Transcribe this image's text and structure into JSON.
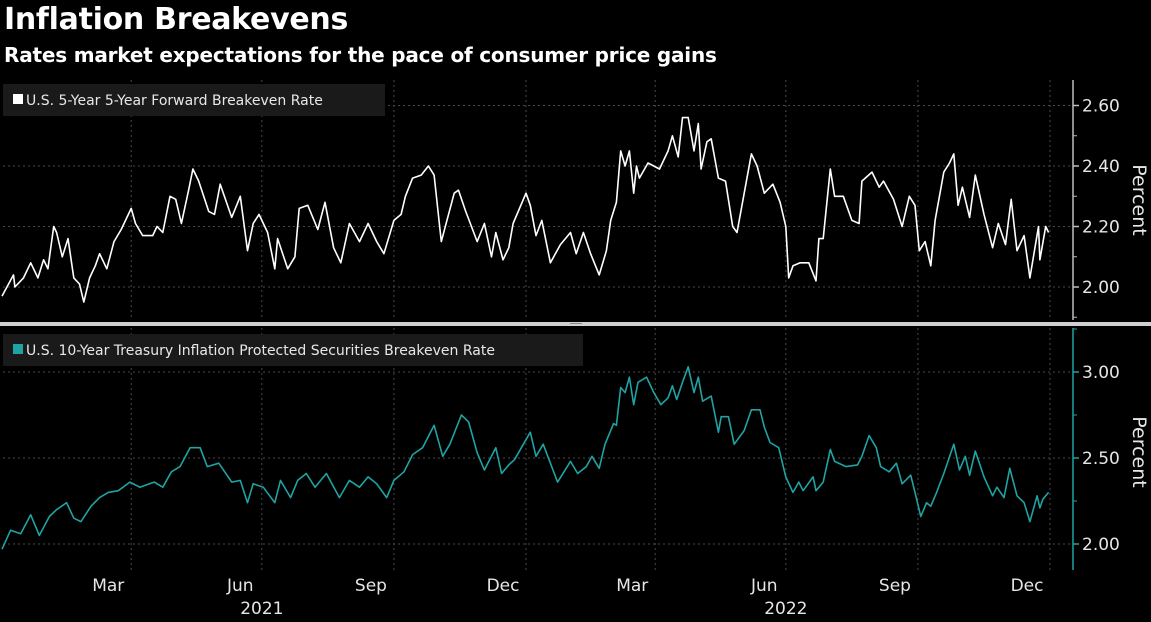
{
  "header": {
    "title": "Inflation Breakevens",
    "subtitle": "Rates market expectations for the pace of consumer price gains"
  },
  "colors": {
    "background": "#000000",
    "series_top": "#ffffff",
    "series_bottom": "#1fa3a3",
    "grid": "#4a4a4a",
    "divider": "#cfcfcf"
  },
  "x_axis": {
    "month_labels": [
      {
        "label": "Mar",
        "date": "2021-03-16"
      },
      {
        "label": "Jun",
        "date": "2021-06-16"
      },
      {
        "label": "Sep",
        "date": "2021-09-15"
      },
      {
        "label": "Dec",
        "date": "2021-12-16"
      },
      {
        "label": "Mar",
        "date": "2022-03-16"
      },
      {
        "label": "Jun",
        "date": "2022-06-16"
      },
      {
        "label": "Sep",
        "date": "2022-09-15"
      },
      {
        "label": "Dec",
        "date": "2022-12-16"
      }
    ],
    "year_labels": [
      {
        "label": "2021",
        "date": "2021-07-01"
      },
      {
        "label": "2022",
        "date": "2022-07-01"
      }
    ],
    "gridlines": [
      "2021-04-01",
      "2021-07-01",
      "2021-10-01",
      "2022-01-01",
      "2022-04-01",
      "2022-07-01",
      "2022-10-01",
      "2023-01-01"
    ],
    "range": [
      "2021-01-01",
      "2023-01-01"
    ]
  },
  "chart_data": [
    {
      "type": "line",
      "legend": "U.S. 5-Year 5-Year Forward Breakeven Rate",
      "ylabel": "Percent",
      "ylim": [
        1.89,
        2.68
      ],
      "yticks": [
        "2.60",
        "2.40",
        "2.20",
        "2.00"
      ],
      "yticks_minor": [
        2.5,
        2.3,
        2.1,
        1.9
      ],
      "grid": true,
      "legend_position": "top-left",
      "axis_side": "right",
      "series": [
        {
          "dates": [
            "2021-01-01",
            "2021-01-09",
            "2021-01-10",
            "2021-01-16",
            "2021-01-21",
            "2021-01-26",
            "2021-01-30",
            "2021-02-02",
            "2021-02-06",
            "2021-02-08",
            "2021-02-12",
            "2021-02-16",
            "2021-02-20",
            "2021-02-24",
            "2021-02-27",
            "2021-03-03",
            "2021-03-07",
            "2021-03-10",
            "2021-03-15",
            "2021-03-20",
            "2021-03-25",
            "2021-04-01",
            "2021-04-04",
            "2021-04-09",
            "2021-04-16",
            "2021-04-19",
            "2021-04-23",
            "2021-04-28",
            "2021-05-02",
            "2021-05-06",
            "2021-05-11",
            "2021-05-14",
            "2021-05-18",
            "2021-05-25",
            "2021-05-29",
            "2021-06-02",
            "2021-06-10",
            "2021-06-16",
            "2021-06-21",
            "2021-06-25",
            "2021-06-29",
            "2021-07-05",
            "2021-07-10",
            "2021-07-12",
            "2021-07-19",
            "2021-07-24",
            "2021-07-27",
            "2021-08-02",
            "2021-08-09",
            "2021-08-14",
            "2021-08-20",
            "2021-08-25",
            "2021-08-31",
            "2021-09-07",
            "2021-09-13",
            "2021-09-19",
            "2021-09-24",
            "2021-10-01",
            "2021-10-06",
            "2021-10-09",
            "2021-10-14",
            "2021-10-20",
            "2021-10-25",
            "2021-10-29",
            "2021-11-03",
            "2021-11-12",
            "2021-11-15",
            "2021-11-20",
            "2021-11-28",
            "2021-12-03",
            "2021-12-08",
            "2021-12-11",
            "2021-12-16",
            "2021-12-20",
            "2021-12-23",
            "2022-01-01",
            "2022-01-04",
            "2022-01-08",
            "2022-01-12",
            "2022-01-18",
            "2022-01-25",
            "2022-02-01",
            "2022-02-05",
            "2022-02-10",
            "2022-02-15",
            "2022-02-21",
            "2022-02-26",
            "2022-03-01",
            "2022-03-05",
            "2022-03-08",
            "2022-03-11",
            "2022-03-14",
            "2022-03-17",
            "2022-03-19",
            "2022-03-21",
            "2022-03-27",
            "2022-04-04",
            "2022-04-10",
            "2022-04-13",
            "2022-04-17",
            "2022-04-20",
            "2022-04-24",
            "2022-04-28",
            "2022-05-01",
            "2022-05-03",
            "2022-05-07",
            "2022-05-10",
            "2022-05-15",
            "2022-05-20",
            "2022-05-25",
            "2022-05-28",
            "2022-06-02",
            "2022-06-07",
            "2022-06-11",
            "2022-06-16",
            "2022-06-22",
            "2022-06-27",
            "2022-07-01",
            "2022-07-03",
            "2022-07-06",
            "2022-07-11",
            "2022-07-17",
            "2022-07-22",
            "2022-07-24",
            "2022-07-27",
            "2022-08-01",
            "2022-08-04",
            "2022-08-10",
            "2022-08-16",
            "2022-08-21",
            "2022-08-23",
            "2022-08-30",
            "2022-09-04",
            "2022-09-07",
            "2022-09-14",
            "2022-09-20",
            "2022-09-25",
            "2022-09-29",
            "2022-10-02",
            "2022-10-06",
            "2022-10-10",
            "2022-10-13",
            "2022-10-19",
            "2022-10-23",
            "2022-10-26",
            "2022-10-29",
            "2022-11-01",
            "2022-11-06",
            "2022-11-10",
            "2022-11-16",
            "2022-11-22",
            "2022-11-26",
            "2022-12-01",
            "2022-12-05",
            "2022-12-09",
            "2022-12-14",
            "2022-12-18",
            "2022-12-24",
            "2022-12-25",
            "2022-12-29",
            "2022-12-31"
          ],
          "values": [
            1.97,
            2.04,
            2.0,
            2.03,
            2.08,
            2.03,
            2.09,
            2.06,
            2.2,
            2.18,
            2.1,
            2.16,
            2.03,
            2.01,
            1.95,
            2.03,
            2.07,
            2.11,
            2.06,
            2.15,
            2.19,
            2.26,
            2.21,
            2.17,
            2.17,
            2.2,
            2.18,
            2.3,
            2.29,
            2.21,
            2.32,
            2.39,
            2.35,
            2.25,
            2.24,
            2.34,
            2.23,
            2.3,
            2.12,
            2.21,
            2.24,
            2.18,
            2.06,
            2.16,
            2.06,
            2.1,
            2.26,
            2.27,
            2.19,
            2.28,
            2.13,
            2.08,
            2.21,
            2.15,
            2.21,
            2.15,
            2.11,
            2.22,
            2.24,
            2.3,
            2.36,
            2.37,
            2.4,
            2.37,
            2.15,
            2.31,
            2.32,
            2.25,
            2.15,
            2.21,
            2.1,
            2.18,
            2.09,
            2.13,
            2.21,
            2.31,
            2.27,
            2.17,
            2.22,
            2.08,
            2.14,
            2.18,
            2.11,
            2.18,
            2.11,
            2.04,
            2.12,
            2.22,
            2.28,
            2.45,
            2.4,
            2.45,
            2.31,
            2.4,
            2.36,
            2.41,
            2.39,
            2.45,
            2.5,
            2.43,
            2.56,
            2.56,
            2.45,
            2.54,
            2.39,
            2.48,
            2.49,
            2.36,
            2.35,
            2.2,
            2.18,
            2.31,
            2.44,
            2.4,
            2.31,
            2.34,
            2.28,
            2.2,
            2.03,
            2.07,
            2.08,
            2.08,
            2.02,
            2.16,
            2.16,
            2.39,
            2.3,
            2.3,
            2.22,
            2.21,
            2.35,
            2.38,
            2.33,
            2.35,
            2.29,
            2.2,
            2.3,
            2.27,
            2.12,
            2.15,
            2.07,
            2.22,
            2.38,
            2.41,
            2.44,
            2.27,
            2.33,
            2.23,
            2.37,
            2.24,
            2.13,
            2.21,
            2.14,
            2.29,
            2.12,
            2.17,
            2.03,
            2.2,
            2.09,
            2.2,
            2.18
          ]
        }
      ]
    },
    {
      "type": "line",
      "legend": "U.S. 10-Year Treasury Inflation Protected Securities Breakeven Rate",
      "ylabel": "Percent",
      "ylim": [
        1.85,
        3.25
      ],
      "yticks": [
        "3.00",
        "2.50",
        "2.00"
      ],
      "yticks_minor": [
        3.25,
        2.75,
        2.25
      ],
      "grid": true,
      "legend_position": "top-left",
      "axis_side": "right",
      "series": [
        {
          "dates": [
            "2021-01-01",
            "2021-01-07",
            "2021-01-14",
            "2021-01-21",
            "2021-01-27",
            "2021-02-03",
            "2021-02-08",
            "2021-02-15",
            "2021-02-20",
            "2021-02-25",
            "2021-03-04",
            "2021-03-10",
            "2021-03-16",
            "2021-03-23",
            "2021-03-31",
            "2021-04-07",
            "2021-04-17",
            "2021-04-23",
            "2021-04-29",
            "2021-05-05",
            "2021-05-12",
            "2021-05-19",
            "2021-05-24",
            "2021-06-01",
            "2021-06-10",
            "2021-06-16",
            "2021-06-21",
            "2021-06-25",
            "2021-07-02",
            "2021-07-10",
            "2021-07-14",
            "2021-07-21",
            "2021-07-26",
            "2021-08-01",
            "2021-08-07",
            "2021-08-15",
            "2021-08-24",
            "2021-08-31",
            "2021-09-07",
            "2021-09-13",
            "2021-09-19",
            "2021-09-26",
            "2021-10-01",
            "2021-10-08",
            "2021-10-14",
            "2021-10-21",
            "2021-10-29",
            "2021-11-04",
            "2021-11-09",
            "2021-11-17",
            "2021-11-22",
            "2021-11-28",
            "2021-12-03",
            "2021-12-11",
            "2021-12-15",
            "2021-12-20",
            "2021-12-24",
            "2022-01-04",
            "2022-01-08",
            "2022-01-13",
            "2022-01-18",
            "2022-01-23",
            "2022-02-01",
            "2022-02-06",
            "2022-02-12",
            "2022-02-16",
            "2022-02-21",
            "2022-02-25",
            "2022-03-03",
            "2022-03-05",
            "2022-03-08",
            "2022-03-11",
            "2022-03-14",
            "2022-03-17",
            "2022-03-20",
            "2022-03-26",
            "2022-03-31",
            "2022-04-05",
            "2022-04-10",
            "2022-04-13",
            "2022-04-16",
            "2022-04-20",
            "2022-04-24",
            "2022-04-28",
            "2022-05-01",
            "2022-05-04",
            "2022-05-10",
            "2022-05-15",
            "2022-05-17",
            "2022-05-22",
            "2022-05-26",
            "2022-06-02",
            "2022-06-07",
            "2022-06-13",
            "2022-06-16",
            "2022-06-20",
            "2022-06-26",
            "2022-07-01",
            "2022-07-06",
            "2022-07-10",
            "2022-07-13",
            "2022-07-20",
            "2022-07-22",
            "2022-07-27",
            "2022-08-01",
            "2022-08-04",
            "2022-08-12",
            "2022-08-20",
            "2022-08-23",
            "2022-08-28",
            "2022-09-02",
            "2022-09-05",
            "2022-09-11",
            "2022-09-16",
            "2022-09-20",
            "2022-09-26",
            "2022-09-29",
            "2022-10-03",
            "2022-10-07",
            "2022-10-10",
            "2022-10-14",
            "2022-10-19",
            "2022-10-26",
            "2022-10-30",
            "2022-11-03",
            "2022-11-06",
            "2022-11-10",
            "2022-11-16",
            "2022-11-22",
            "2022-11-25",
            "2022-11-30",
            "2022-12-04",
            "2022-12-09",
            "2022-12-14",
            "2022-12-18",
            "2022-12-23",
            "2022-12-25",
            "2022-12-27",
            "2022-12-31"
          ],
          "values": [
            1.97,
            2.08,
            2.06,
            2.17,
            2.05,
            2.16,
            2.2,
            2.24,
            2.15,
            2.13,
            2.22,
            2.27,
            2.3,
            2.31,
            2.36,
            2.33,
            2.36,
            2.33,
            2.42,
            2.45,
            2.56,
            2.56,
            2.45,
            2.47,
            2.36,
            2.37,
            2.24,
            2.35,
            2.33,
            2.24,
            2.37,
            2.27,
            2.37,
            2.41,
            2.33,
            2.41,
            2.27,
            2.37,
            2.33,
            2.39,
            2.35,
            2.27,
            2.37,
            2.42,
            2.52,
            2.56,
            2.69,
            2.51,
            2.58,
            2.75,
            2.71,
            2.53,
            2.43,
            2.56,
            2.41,
            2.46,
            2.49,
            2.65,
            2.51,
            2.58,
            2.47,
            2.36,
            2.48,
            2.41,
            2.45,
            2.51,
            2.44,
            2.58,
            2.7,
            2.69,
            2.91,
            2.88,
            2.97,
            2.81,
            2.94,
            2.97,
            2.88,
            2.81,
            2.85,
            2.92,
            2.84,
            2.94,
            3.03,
            2.88,
            2.97,
            2.83,
            2.86,
            2.65,
            2.74,
            2.74,
            2.58,
            2.66,
            2.78,
            2.78,
            2.68,
            2.59,
            2.56,
            2.39,
            2.3,
            2.36,
            2.31,
            2.39,
            2.31,
            2.36,
            2.55,
            2.48,
            2.45,
            2.46,
            2.51,
            2.63,
            2.56,
            2.45,
            2.42,
            2.47,
            2.35,
            2.4,
            2.3,
            2.16,
            2.24,
            2.22,
            2.3,
            2.41,
            2.58,
            2.43,
            2.51,
            2.4,
            2.54,
            2.39,
            2.28,
            2.33,
            2.27,
            2.44,
            2.28,
            2.24,
            2.13,
            2.28,
            2.21,
            2.26,
            2.3
          ]
        }
      ]
    }
  ]
}
